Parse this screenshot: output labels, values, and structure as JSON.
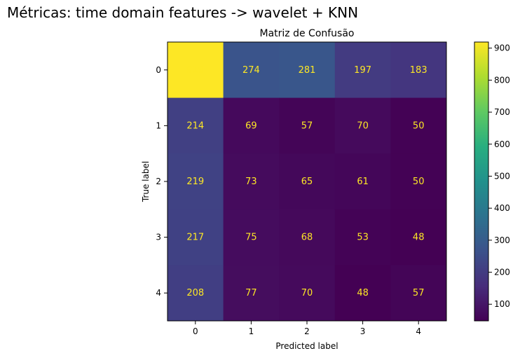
{
  "figure": {
    "suptitle": "Métricas: time domain features -> wavelet + KNN"
  },
  "chart_data": {
    "type": "heatmap",
    "title": "Matriz de Confusão",
    "xlabel": "Predicted label",
    "ylabel": "True label",
    "x_categories": [
      "0",
      "1",
      "2",
      "3",
      "4"
    ],
    "y_categories": [
      "0",
      "1",
      "2",
      "3",
      "4"
    ],
    "matrix": [
      [
        919,
        274,
        281,
        197,
        183
      ],
      [
        214,
        69,
        57,
        70,
        50
      ],
      [
        219,
        73,
        65,
        61,
        50
      ],
      [
        217,
        75,
        68,
        53,
        48
      ],
      [
        208,
        77,
        70,
        48,
        57
      ]
    ],
    "colormap": "viridis",
    "colorbar": {
      "ticks": [
        100,
        200,
        300,
        400,
        500,
        600,
        700,
        800,
        900
      ],
      "range": [
        48,
        919
      ]
    },
    "annotation_color": "#FDE725",
    "grid": false
  }
}
